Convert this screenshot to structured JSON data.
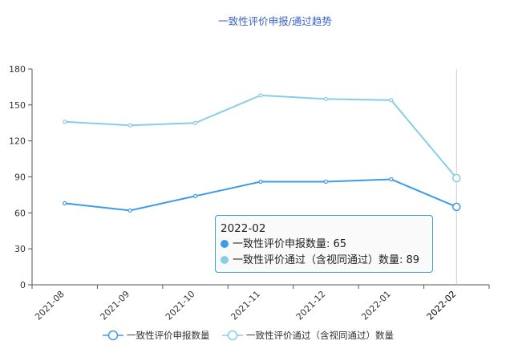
{
  "chart_data": {
    "type": "line",
    "title": "一致性评价申报/通过趋势",
    "categories": [
      "2021-08",
      "2021-09",
      "2021-10",
      "2021-11",
      "2021-12",
      "2022-01",
      "2022-02"
    ],
    "series": [
      {
        "name": "一致性评价申报数量",
        "values": [
          68,
          62,
          74,
          86,
          86,
          88,
          65
        ],
        "color": "#3d9be9"
      },
      {
        "name": "一致性评价通过（含视同通过）数量",
        "values": [
          136,
          133,
          135,
          158,
          155,
          154,
          89
        ],
        "color": "#88cde8"
      }
    ],
    "ylim": [
      0,
      180
    ],
    "yticks": [
      0,
      30,
      60,
      90,
      120,
      150,
      180
    ],
    "grid": false,
    "legend_position": "bottom",
    "tooltip": {
      "title": "2022-02",
      "rows": [
        {
          "label": "一致性评价申报数量: 65",
          "color": "#3d9be9"
        },
        {
          "label": "一致性评价通过（含视同通过）数量: 89",
          "color": "#88cde8"
        }
      ]
    }
  }
}
